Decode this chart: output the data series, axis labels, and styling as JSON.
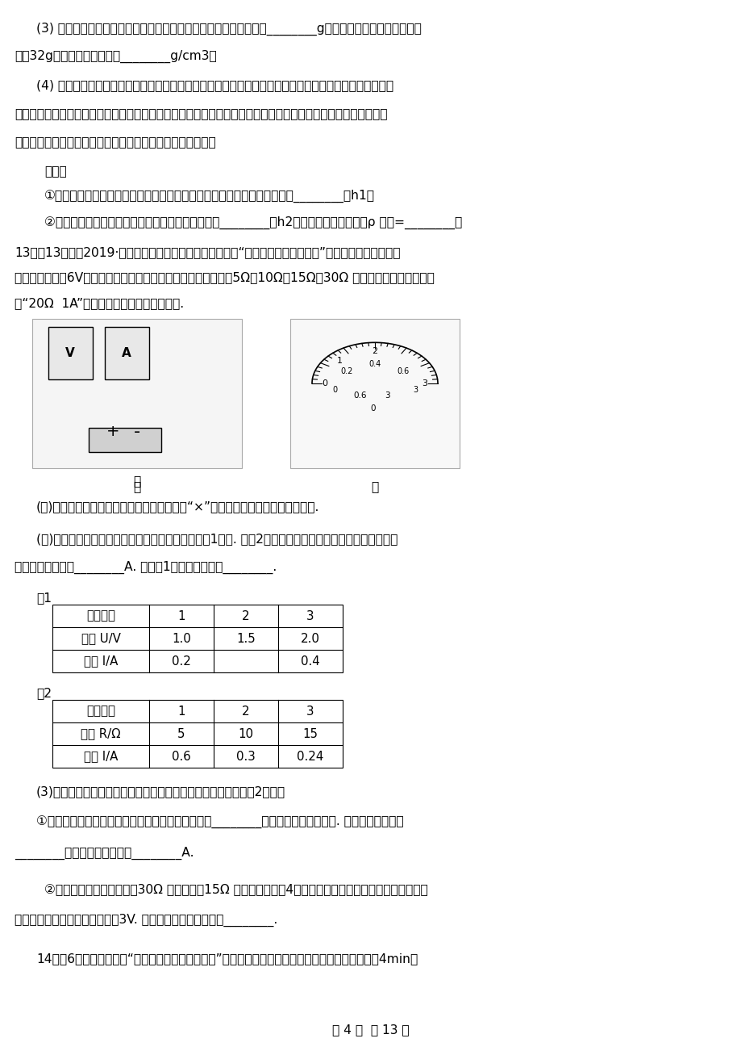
{
  "background_color": "#ffffff",
  "page_width": 9.2,
  "page_height": 13.02,
  "text_color": "#000000",
  "line1": "(3) 他用调好的天平测出了剩余的口香糇和瓶的总质量（如图乙）为________g，已知原来瓶和口香糇的总质",
  "line2": "量为32g，则口香糇的密度为________g/cm3。",
  "line3": "(4) 吴铭对测密度充满兴趣，回到家后他又想测量一下妈妈刚榨的一杯果汁的密度，但是家里既没有天平也",
  "line4": "没有量筒，最后他想到了用刻度尺和剩余的多半瓶口香糇、水及一只水杯（如图丙）测果汁的密度。下面是他的实",
  "line5": "验过程，请将实验步骤补充完整，并写出果汁密度的表达式。",
  "line_steps": "步骤：",
  "line_s1": "①在杯中装入适量水，将口香糇瓶放入水杯中使其竖直漂浮，用刻度尺测出________为h1。",
  "line_s2": "②将水杯中水倒出后，再装入适量果汁，将口香糇瓶________为h2。果汁密度的表达式：ρ 果汁=________。",
  "line13a": "13．（13分）（2019·河北模拟）如图甲是某实验小组探究“电流与电压、电阵关系”的电路图，使用的实验",
  "line13b": "器材有：电压为6V的电源、电流表、电压表各一个，开关一个，5Ω、10Ω、15Ω、30Ω 的定值电阵各一个，规格",
  "line13c": "为“20Ω  1A”的滑动变阵器一个，导线若干.",
  "q1": "(１)　请把图甲中接错的那根导线找出来打上“×”，再用笔画线代替导线把它改正.",
  "q2": "(２)　改接好电路后所测得的几组电流、电压値如表1所示. 在第2次实验中，电流表的示数如图乙所示，则",
  "q2b": "通过电阵的电流为________A. 根据表1数据可得结论：________.",
  "t1label": "表1",
  "t2label": "表2",
  "t1h0": "实验次数",
  "t1h1": "1",
  "t1h2": "2",
  "t1h3": "3",
  "t1r1c0": "电压 U/V",
  "t1r1c1": "1.0",
  "t1r1c2": "1.5",
  "t1r1c3": "2.0",
  "t1r2c0": "电流 I/A",
  "t1r2c1": "0.2",
  "t1r2c2": "",
  "t1r2c3": "0.4",
  "t2h0": "实验次数",
  "t2h1": "1",
  "t2h2": "2",
  "t2h3": "3",
  "t2r1c0": "电阵 R/Ω",
  "t2r1c1": "5",
  "t2r1c2": "10",
  "t2r1c3": "15",
  "t2r2c0": "电流 I/A",
  "t2r2c1": "0.6",
  "t2r2c2": "0.3",
  "t2r2c3": "0.24",
  "q3": "(3)　探究电流与电阵的关系时，所测得的几组电流、电压値如表2所示，",
  "q3a": "①由于操作不当，导致一组数据存在错误，请判断第________次实验的数据存在错误. 产生错误的原因是",
  "q3a2": "________，正确的数据应该是________A.",
  "q3b": "②纠正错误以后，该小组用30Ω 的电阵替打15Ω 的电阵进行了第4次实验，发现无论怎样移动滑动变阵器滑",
  "q3b2": "片，电压表的示数始终无法达到3V. 请你找出一种可能的原因________.",
  "q14": "14．（6分）某同学探究“冰溶化时温度的变化规律”时，记录的数据如表，在实验时观察到，冰在第4min开",
  "footer": "第 4 页  共 13 页"
}
